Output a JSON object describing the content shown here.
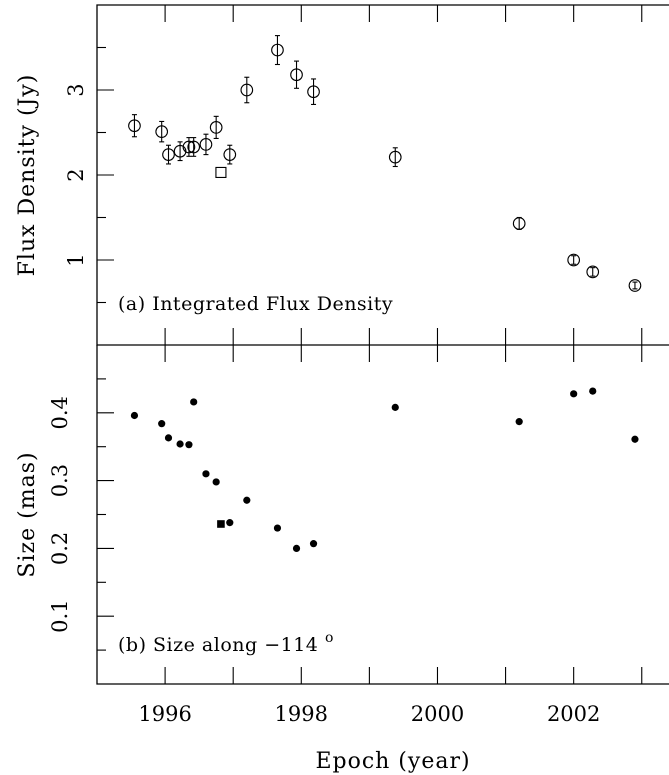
{
  "chart_data": [
    {
      "type": "scatter",
      "panel_label": "(a) Integrated Flux Density",
      "ylabel": "Flux Density (Jy)",
      "xlim": [
        1995.0,
        2003.4
      ],
      "ylim": [
        0.0,
        4.0
      ],
      "yticks_labeled": [
        "1",
        "2",
        "3"
      ],
      "yticks_labeled_values": [
        1,
        2,
        3
      ],
      "yticks_minor_values": [
        0.5,
        1.5,
        2.5,
        3.5
      ],
      "series": [
        {
          "marker": "open-circle",
          "x": [
            1995.55,
            1995.95,
            1996.05,
            1996.22,
            1996.35,
            1996.42,
            1996.6,
            1996.75,
            1996.95,
            1997.2,
            1997.65,
            1997.93,
            1998.18,
            1999.38,
            2001.2,
            2002.0,
            2002.28,
            2002.9
          ],
          "y": [
            2.58,
            2.51,
            2.24,
            2.28,
            2.33,
            2.33,
            2.36,
            2.56,
            2.24,
            3.0,
            3.47,
            3.18,
            2.98,
            2.21,
            1.43,
            1.0,
            0.86,
            0.7
          ],
          "err": [
            0.13,
            0.12,
            0.11,
            0.11,
            0.11,
            0.11,
            0.12,
            0.13,
            0.11,
            0.15,
            0.17,
            0.16,
            0.15,
            0.11,
            0.07,
            0.05,
            0.05,
            0.04
          ]
        },
        {
          "marker": "open-square",
          "x": [
            1996.82
          ],
          "y": [
            2.03
          ]
        }
      ]
    },
    {
      "type": "scatter",
      "panel_label_prefix": "(b) Size along ",
      "panel_label_value": "−114",
      "panel_label_sup": "o",
      "xlabel": "Epoch (year)",
      "ylabel": "Size (mas)",
      "xlim": [
        1995.0,
        2003.4
      ],
      "ylim": [
        0.0,
        0.5
      ],
      "xticks_labeled": [
        "1996",
        "1998",
        "2000",
        "2002"
      ],
      "xticks_labeled_values": [
        1996,
        1998,
        2000,
        2002
      ],
      "xticks_minor_values": [
        1995.0,
        1997.0,
        1999.0,
        2001.0,
        2003.0
      ],
      "yticks_labeled": [
        "0.1",
        "0.2",
        "0.3",
        "0.4"
      ],
      "yticks_labeled_values": [
        0.1,
        0.2,
        0.3,
        0.4
      ],
      "yticks_minor_values": [
        0.05,
        0.15,
        0.25,
        0.35,
        0.45
      ],
      "series": [
        {
          "marker": "filled-circle",
          "x": [
            1995.55,
            1995.95,
            1996.05,
            1996.22,
            1996.35,
            1996.42,
            1996.6,
            1996.75,
            1996.95,
            1997.2,
            1997.65,
            1997.93,
            1998.18,
            1999.38,
            2001.2,
            2002.0,
            2002.28,
            2002.9
          ],
          "y": [
            0.396,
            0.384,
            0.363,
            0.354,
            0.353,
            0.416,
            0.31,
            0.298,
            0.238,
            0.271,
            0.23,
            0.2,
            0.207,
            0.408,
            0.387,
            0.428,
            0.432,
            0.361
          ]
        },
        {
          "marker": "filled-square",
          "x": [
            1996.82
          ],
          "y": [
            0.236
          ]
        }
      ]
    }
  ]
}
